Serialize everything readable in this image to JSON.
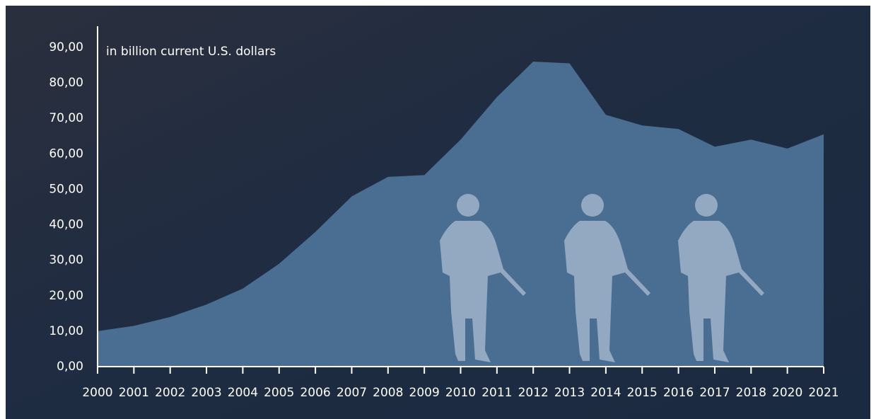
{
  "chart_data": {
    "type": "area",
    "subtitle": "in billion current U.S. dollars",
    "categories": [
      "2000",
      "2001",
      "2002",
      "2003",
      "2004",
      "2005",
      "2006",
      "2007",
      "2008",
      "2009",
      "2010",
      "2011",
      "2012",
      "2013",
      "2014",
      "2015",
      "2016",
      "2017",
      "2018",
      "2020",
      "2021"
    ],
    "values": [
      10,
      11.5,
      14,
      17.5,
      22,
      29,
      38,
      48,
      53.5,
      54,
      64,
      76,
      86,
      85.5,
      71,
      68,
      67,
      62,
      64,
      61.5,
      65.5
    ],
    "color": "#4a6d92",
    "ylim": [
      0,
      90
    ],
    "yticks": [
      {
        "value": 0,
        "label": "0,00"
      },
      {
        "value": 10,
        "label": "10,00"
      },
      {
        "value": 20,
        "label": "20,00"
      },
      {
        "value": 30,
        "label": "30,00"
      },
      {
        "value": 40,
        "label": "40,00"
      },
      {
        "value": 50,
        "label": "50,00"
      },
      {
        "value": 60,
        "label": "60,00"
      },
      {
        "value": 70,
        "label": "70,00"
      },
      {
        "value": 80,
        "label": "80,00"
      },
      {
        "value": 90,
        "label": "90,00"
      }
    ]
  }
}
